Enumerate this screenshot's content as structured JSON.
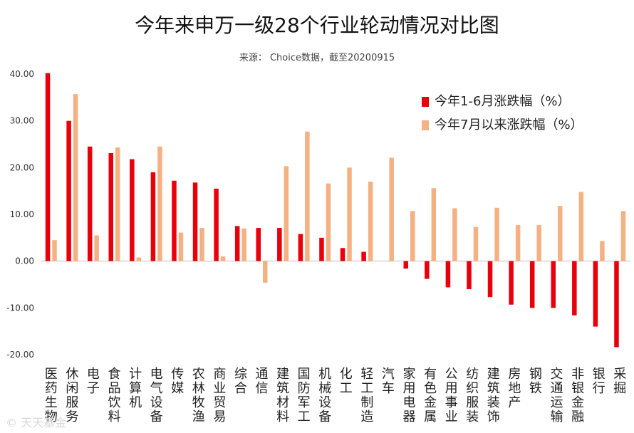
{
  "chart_data": {
    "type": "bar",
    "title": "今年来申万一级28个行业轮动情况对比图",
    "subtitle": "来源： Choice数据，截至20200915",
    "ylim": [
      -20,
      40
    ],
    "yticks": [
      "40.00",
      "30.00",
      "20.00",
      "10.00",
      "0.00",
      "-10.00",
      "-20.00"
    ],
    "ytick_values": [
      40,
      30,
      20,
      10,
      0,
      -10,
      -20
    ],
    "legend_position": "top-right",
    "categories": [
      "医药生物",
      "休闲服务",
      "电子",
      "食品饮料",
      "计算机",
      "电气设备",
      "传媒",
      "农林牧渔",
      "商业贸易",
      "综合",
      "通信",
      "建筑材料",
      "国防军工",
      "机械设备",
      "化工",
      "轻工制造",
      "汽车",
      "家用电器",
      "有色金属",
      "公用事业",
      "纺织服装",
      "建筑装饰",
      "房地产",
      "钢铁",
      "交通运输",
      "非银金融",
      "银行",
      "采掘"
    ],
    "series": [
      {
        "name": "今年1-6月涨跌幅（%）",
        "color": "#e8000b",
        "values": [
          40.2,
          30.0,
          24.5,
          23.1,
          21.8,
          19.0,
          17.2,
          16.8,
          15.5,
          7.5,
          7.1,
          7.1,
          5.8,
          5.0,
          2.8,
          2.0,
          0.0,
          -1.6,
          -3.8,
          -5.6,
          -6.0,
          -7.7,
          -9.3,
          -10.0,
          -10.0,
          -11.6,
          -14.0,
          -18.4
        ]
      },
      {
        "name": "今年7月以来涨跌幅（%）",
        "color": "#f4b183",
        "values": [
          4.5,
          35.7,
          5.5,
          24.3,
          0.8,
          24.5,
          6.1,
          7.1,
          1.0,
          7.0,
          -4.6,
          20.3,
          27.7,
          16.6,
          20.0,
          17.0,
          22.1,
          10.7,
          15.6,
          11.3,
          7.3,
          11.4,
          7.7,
          7.7,
          11.8,
          14.8,
          4.3,
          10.7
        ]
      }
    ]
  },
  "watermark": "© 天天基金"
}
